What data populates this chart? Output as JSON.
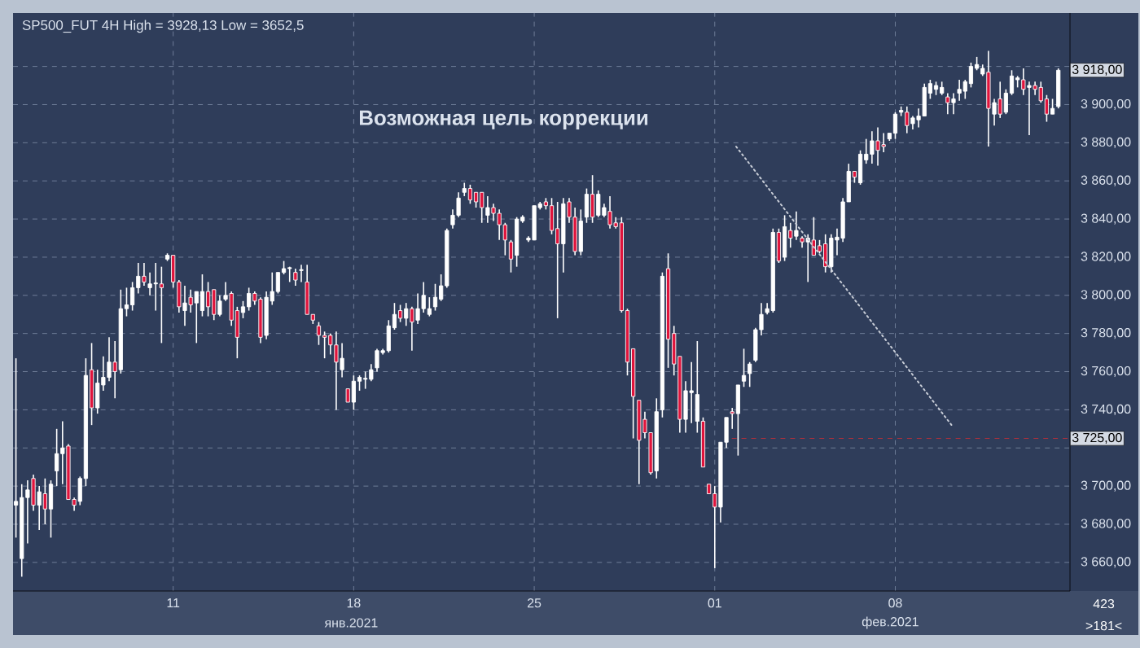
{
  "chart_data": {
    "type": "candlestick",
    "title": "SP500_FUT 4H High = 3928,13 Low = 3652,5",
    "color": "#ffffff",
    "categories": [
      null,
      null,
      null,
      null,
      null,
      null,
      null,
      null,
      null,
      null,
      null,
      null,
      null,
      null,
      null,
      null,
      null,
      null,
      null,
      null,
      null,
      null,
      null,
      null,
      null,
      null,
      null,
      "11",
      null,
      null,
      null,
      null,
      null,
      null,
      null,
      null,
      null,
      null,
      null,
      null,
      null,
      null,
      null,
      null,
      null,
      null,
      null,
      null,
      null,
      null,
      null,
      null,
      null,
      null,
      null,
      null,
      null,
      null,
      "18",
      null,
      null,
      null,
      null,
      null,
      null,
      null,
      null,
      null,
      null,
      null,
      null,
      null,
      null,
      null,
      null,
      null,
      null,
      null,
      null,
      null,
      null,
      null,
      null,
      null,
      null,
      null,
      null,
      null,
      null,
      "25",
      null,
      null,
      null,
      null,
      null,
      null,
      null,
      null,
      null,
      null,
      null,
      null,
      null,
      null,
      null,
      null,
      null,
      null,
      null,
      null,
      null,
      null,
      null,
      null,
      null,
      null,
      null,
      null,
      null,
      null,
      "01",
      null,
      null,
      null,
      null,
      null,
      null,
      null,
      null,
      null,
      null,
      null,
      null,
      null,
      null,
      null,
      null,
      null,
      null,
      null,
      null,
      null,
      null,
      null,
      null,
      null,
      null,
      null,
      null,
      null,
      null,
      "08",
      null,
      null,
      null,
      null,
      null,
      null,
      null,
      null,
      null,
      null,
      null,
      null,
      null,
      null,
      null,
      null,
      null,
      null,
      null,
      null,
      null,
      null,
      null,
      null,
      null,
      null,
      null,
      null
    ],
    "ohlc": [
      [
        3690,
        3767,
        3673,
        3692
      ],
      [
        3662,
        3701,
        3652.5,
        3694
      ],
      [
        3694,
        3703,
        3670,
        3698
      ],
      [
        3704,
        3706,
        3687,
        3690
      ],
      [
        3690,
        3700,
        3677,
        3697
      ],
      [
        3696,
        3704,
        3680,
        3688
      ],
      [
        3688,
        3703,
        3673,
        3701
      ],
      [
        3708,
        3730,
        3700,
        3717
      ],
      [
        3717,
        3734,
        3701,
        3720
      ],
      [
        3721,
        3722,
        3693,
        3693
      ],
      [
        3693,
        3694,
        3687,
        3690
      ],
      [
        3692,
        3705,
        3690,
        3704
      ],
      [
        3704,
        3767,
        3700,
        3758
      ],
      [
        3761,
        3775,
        3732,
        3741
      ],
      [
        3741,
        3761,
        3738,
        3754
      ],
      [
        3753,
        3768,
        3750,
        3757
      ],
      [
        3757,
        3778,
        3755,
        3765
      ],
      [
        3765,
        3776,
        3746,
        3760
      ],
      [
        3761,
        3803,
        3759,
        3793
      ],
      [
        3793,
        3804,
        3789,
        3795
      ],
      [
        3795,
        3807,
        3792,
        3804
      ],
      [
        3804,
        3817,
        3801,
        3810
      ],
      [
        3810,
        3817,
        3805,
        3807
      ],
      [
        3804,
        3812,
        3800,
        3806
      ],
      [
        3806,
        3817,
        3792,
        3806.5
      ],
      [
        3806,
        3815,
        3775,
        3804
      ],
      [
        3819,
        3822,
        3818,
        3821
      ],
      [
        3821,
        3821,
        3804,
        3807
      ],
      [
        3807,
        3808,
        3791,
        3794
      ],
      [
        3792,
        3805,
        3784,
        3796
      ],
      [
        3799,
        3803,
        3791,
        3795
      ],
      [
        3796,
        3802,
        3775,
        3802
      ],
      [
        3792,
        3811,
        3789,
        3802
      ],
      [
        3802,
        3807,
        3789,
        3794
      ],
      [
        3803,
        3803,
        3787,
        3790
      ],
      [
        3790,
        3800,
        3789,
        3797
      ],
      [
        3798,
        3807,
        3797,
        3800
      ],
      [
        3801,
        3802,
        3784,
        3787
      ],
      [
        3792,
        3794,
        3767,
        3778
      ],
      [
        3791,
        3797,
        3788,
        3794
      ],
      [
        3794,
        3804,
        3792,
        3801
      ],
      [
        3801,
        3802,
        3795,
        3797
      ],
      [
        3798,
        3799,
        3775,
        3778
      ],
      [
        3779,
        3802,
        3777,
        3799
      ],
      [
        3797,
        3812,
        3795,
        3802
      ],
      [
        3802,
        3812,
        3801,
        3812
      ],
      [
        3812,
        3818,
        3811,
        3814
      ],
      [
        3814,
        3815,
        3807,
        3814.5
      ],
      [
        3812,
        3814,
        3805,
        3808
      ],
      [
        3813,
        3816,
        3807,
        3813.5
      ],
      [
        3807,
        3816,
        3790,
        3790
      ],
      [
        3790,
        3790,
        3785,
        3787
      ],
      [
        3784,
        3786,
        3774,
        3779
      ],
      [
        3779,
        3781,
        3767,
        3778
      ],
      [
        3779,
        3780,
        3769,
        3774
      ],
      [
        3774,
        3781,
        3740,
        3765
      ],
      [
        3761,
        3775,
        3757,
        3767
      ],
      [
        3751,
        3751,
        3744,
        3744
      ],
      [
        3744,
        3758,
        3740,
        3755
      ],
      [
        3755,
        3758,
        3750,
        3757
      ],
      [
        3756,
        3760,
        3751,
        3756.5
      ],
      [
        3756,
        3764,
        3755,
        3761
      ],
      [
        3762,
        3772,
        3760,
        3771
      ],
      [
        3770,
        3772,
        3769,
        3771
      ],
      [
        3771,
        3787,
        3770,
        3784
      ],
      [
        3783,
        3796,
        3782,
        3790
      ],
      [
        3792,
        3795,
        3786,
        3788
      ],
      [
        3788,
        3796,
        3784,
        3793
      ],
      [
        3793,
        3794,
        3771,
        3786
      ],
      [
        3787,
        3801,
        3785,
        3793
      ],
      [
        3793,
        3807,
        3791,
        3800
      ],
      [
        3790,
        3799,
        3789,
        3793
      ],
      [
        3794,
        3806,
        3792,
        3799
      ],
      [
        3798,
        3811,
        3797,
        3805
      ],
      [
        3805,
        3835,
        3804,
        3834
      ],
      [
        3837,
        3845,
        3835,
        3842
      ],
      [
        3842,
        3854,
        3841,
        3851
      ],
      [
        3854,
        3859,
        3852,
        3856
      ],
      [
        3856,
        3858,
        3848,
        3850
      ],
      [
        3854,
        3854,
        3846,
        3849
      ],
      [
        3854,
        3854,
        3838,
        3846
      ],
      [
        3842,
        3852,
        3838,
        3846
      ],
      [
        3846,
        3848,
        3839,
        3843
      ],
      [
        3843,
        3845,
        3829,
        3837
      ],
      [
        3837,
        3838,
        3821,
        3829
      ],
      [
        3828,
        3829,
        3812,
        3819
      ],
      [
        3821,
        3841,
        3815,
        3840
      ],
      [
        3839,
        3842,
        3838,
        3841
      ],
      [
        3829,
        3831,
        3828,
        3830
      ],
      [
        3829,
        3847,
        3829,
        3847
      ],
      [
        3846,
        3849,
        3845,
        3848
      ],
      [
        3849,
        3851,
        3845,
        3847
      ],
      [
        3847,
        3851,
        3832,
        3834
      ],
      [
        3835,
        3849,
        3788,
        3827
      ],
      [
        3827,
        3851,
        3812,
        3848
      ],
      [
        3849,
        3851,
        3838,
        3841
      ],
      [
        3841,
        3846,
        3821,
        3823
      ],
      [
        3823,
        3845,
        3821,
        3839
      ],
      [
        3841,
        3856,
        3838,
        3853
      ],
      [
        3853,
        3863,
        3838,
        3841
      ],
      [
        3842,
        3855,
        3841,
        3853
      ],
      [
        3842,
        3848,
        3841,
        3846
      ],
      [
        3844,
        3852,
        3835,
        3837
      ],
      [
        3838,
        3841,
        3835,
        3836
      ],
      [
        3838,
        3841,
        3791,
        3792
      ],
      [
        3792,
        3793,
        3758,
        3765
      ],
      [
        3772,
        3772,
        3725,
        3747
      ],
      [
        3745,
        3745,
        3701,
        3724
      ],
      [
        3735,
        3739,
        3725,
        3728
      ],
      [
        3728,
        3728,
        3706,
        3707
      ],
      [
        3708,
        3746,
        3704,
        3739
      ],
      [
        3740,
        3812,
        3736,
        3810
      ],
      [
        3814,
        3822,
        3762,
        3777
      ],
      [
        3780,
        3784,
        3758,
        3764
      ],
      [
        3768,
        3768,
        3728,
        3735
      ],
      [
        3735,
        3755,
        3728,
        3750
      ],
      [
        3749,
        3765,
        3733,
        3750
      ],
      [
        3734,
        3776,
        3728,
        3748
      ],
      [
        3734,
        3736,
        3710,
        3710
      ],
      [
        3701,
        3701,
        3696,
        3696
      ],
      [
        3696,
        3700,
        3657,
        3689
      ],
      [
        3689,
        3723,
        3681,
        3723
      ],
      [
        3723,
        3736,
        3720,
        3736
      ],
      [
        3739,
        3741,
        3730,
        3738
      ],
      [
        3738,
        3753,
        3716,
        3753
      ],
      [
        3755,
        3772,
        3752,
        3758
      ],
      [
        3759,
        3765,
        3752,
        3764
      ],
      [
        3766,
        3783,
        3765,
        3782
      ],
      [
        3782,
        3796,
        3779,
        3790
      ],
      [
        3791,
        3796,
        3790,
        3793
      ],
      [
        3792,
        3835,
        3791,
        3833
      ],
      [
        3833,
        3835,
        3817,
        3818
      ],
      [
        3820,
        3842,
        3818,
        3836
      ],
      [
        3834,
        3838,
        3825,
        3830
      ],
      [
        3831,
        3844,
        3829,
        3834
      ],
      [
        3830,
        3831,
        3825,
        3828
      ],
      [
        3828,
        3832,
        3807,
        3830
      ],
      [
        3829,
        3841,
        3821,
        3821
      ],
      [
        3826,
        3829,
        3822,
        3823
      ],
      [
        3827,
        3832,
        3812,
        3815
      ],
      [
        3815,
        3832,
        3812,
        3830
      ],
      [
        3829,
        3835,
        3821,
        3830.5
      ],
      [
        3830,
        3851,
        3828,
        3849
      ],
      [
        3849,
        3869,
        3849,
        3865
      ],
      [
        3865,
        3865,
        3859,
        3862
      ],
      [
        3859,
        3876,
        3858,
        3874
      ],
      [
        3871,
        3882,
        3869,
        3874
      ],
      [
        3874,
        3886,
        3869,
        3881
      ],
      [
        3881,
        3888,
        3868,
        3876
      ],
      [
        3879,
        3885,
        3875,
        3878
      ],
      [
        3882,
        3885,
        3881,
        3885
      ],
      [
        3885,
        3896,
        3882,
        3895
      ],
      [
        3896,
        3899,
        3894,
        3897
      ],
      [
        3896,
        3899,
        3885,
        3889
      ],
      [
        3890,
        3894,
        3887,
        3893
      ],
      [
        3892,
        3898,
        3888,
        3894
      ],
      [
        3894,
        3911,
        3894,
        3909
      ],
      [
        3906,
        3913,
        3903,
        3911
      ],
      [
        3908,
        3912,
        3905,
        3910
      ],
      [
        3906,
        3912,
        3905,
        3909
      ],
      [
        3904,
        3906,
        3895,
        3901
      ],
      [
        3901,
        3906,
        3895,
        3903
      ],
      [
        3906,
        3913,
        3902,
        3908
      ],
      [
        3907,
        3913,
        3903,
        3912
      ],
      [
        3911,
        3922,
        3909,
        3920
      ],
      [
        3919,
        3925,
        3918,
        3921
      ],
      [
        3916,
        3921,
        3915,
        3919
      ],
      [
        3917,
        3928.13,
        3878,
        3898
      ],
      [
        3895,
        3903,
        3889,
        3901
      ],
      [
        3903,
        3912,
        3893,
        3895
      ],
      [
        3896,
        3908,
        3895,
        3906
      ],
      [
        3906,
        3918,
        3905,
        3915
      ],
      [
        3913,
        3915,
        3909,
        3914
      ],
      [
        3913,
        3919,
        3905,
        3908
      ],
      [
        3909,
        3912,
        3884,
        3910
      ],
      [
        3910,
        3912,
        3905,
        3908
      ],
      [
        3909,
        3912,
        3901,
        3902
      ],
      [
        3903,
        3905,
        3891,
        3895
      ],
      [
        3895,
        3903,
        3895,
        3898
      ],
      [
        3899,
        3919,
        3898,
        3918
      ]
    ],
    "ylim": [
      3645,
      3948
    ],
    "yticks": [
      {
        "value": 3660,
        "label": "3 660,00"
      },
      {
        "value": 3680,
        "label": "3 680,00"
      },
      {
        "value": 3700,
        "label": "3 700,00"
      },
      {
        "value": 3720,
        "label": null
      },
      {
        "value": 3740,
        "label": "3 740,00"
      },
      {
        "value": 3760,
        "label": "3 760,00"
      },
      {
        "value": 3780,
        "label": "3 780,00"
      },
      {
        "value": 3800,
        "label": "3 800,00"
      },
      {
        "value": 3820,
        "label": "3 820,00"
      },
      {
        "value": 3840,
        "label": "3 840,00"
      },
      {
        "value": 3860,
        "label": "3 860,00"
      },
      {
        "value": 3880,
        "label": "3 880,00"
      },
      {
        "value": 3900,
        "label": "3 900,00"
      },
      {
        "value": 3920,
        "label": null
      }
    ],
    "grid": true,
    "ref_lines": [
      {
        "axis": "y",
        "value": 3725,
        "label": "3 725,00",
        "color": "#b5303a",
        "line_style": "dashed"
      }
    ],
    "annotations": [
      "Возможная цель коррекции",
      "янв.2021",
      "фев.2021",
      "3 918,00",
      "423",
      ">181<"
    ]
  }
}
